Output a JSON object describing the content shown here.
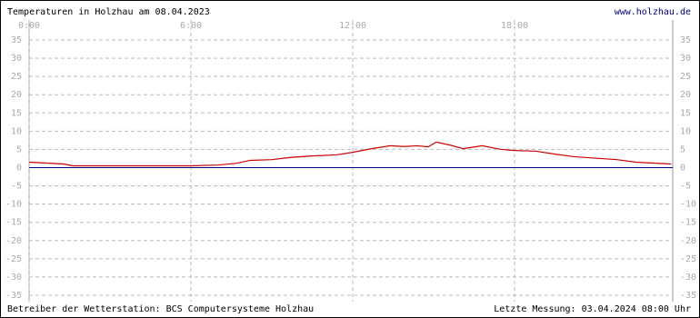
{
  "chart_data": {
    "type": "line",
    "title": "Temperaturen in Holzhau am 08.04.2023",
    "link": "www.holzhau.de",
    "footer_left": "Betreiber der Wetterstation: BCS Computersysteme Holzhau",
    "footer_right": "Letzte Messung: 03.04.2024 08:00 Uhr",
    "x": [
      0,
      1.3,
      1.6,
      6,
      7,
      7.7,
      8.2,
      9,
      9.7,
      10.5,
      11.4,
      12,
      12.7,
      13.4,
      13.9,
      14.4,
      14.8,
      15.1,
      15.6,
      16.1,
      16.8,
      17.5,
      18,
      18.8,
      19.5,
      20.2,
      20.8,
      21.8,
      22.5,
      23.8
    ],
    "series": [
      {
        "color": "#cc0000",
        "values": [
          1.5,
          1,
          0.5,
          0.5,
          0.7,
          1.2,
          2,
          2.2,
          2.8,
          3.2,
          3.5,
          4.2,
          5.2,
          6,
          5.8,
          6,
          5.7,
          7,
          6.2,
          5.2,
          6,
          5,
          4.7,
          4.5,
          3.7,
          3,
          2.7,
          2.2,
          1.5,
          1
        ]
      }
    ],
    "xlim": [
      0,
      24
    ],
    "xticks": [
      {
        "value": 0,
        "label": "0:00"
      },
      {
        "value": 6,
        "label": "6:00"
      },
      {
        "value": 12,
        "label": "12:00"
      },
      {
        "value": 18,
        "label": "18:00"
      }
    ],
    "ylim": [
      -35,
      35
    ],
    "yticks": [
      35,
      30,
      25,
      20,
      15,
      10,
      5,
      0,
      -5,
      -10,
      -15,
      -20,
      -25,
      -30,
      -35
    ],
    "grid": true
  }
}
